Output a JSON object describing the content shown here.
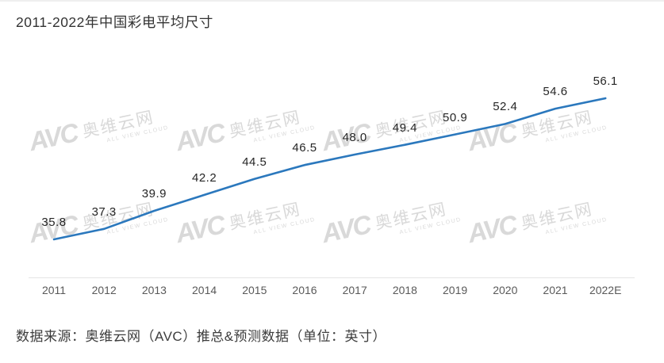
{
  "title": "2011-2022年中国彩电平均尺寸",
  "source_note": "数据来源：奥维云网（AVC）推总&预测数据（单位：英寸）",
  "watermark": {
    "logo": "AVC",
    "brand": "奥维云网",
    "tagline": "ALL VIEW CLOUD"
  },
  "colors": {
    "line": "#2b78bd",
    "point_label": "#262626",
    "axis_label": "#595959",
    "axis_line": "#e4e4e4",
    "watermark": "#d9d9d9",
    "title": "#333333",
    "source": "#3d3d3d",
    "background": "#ffffff"
  },
  "chart_data": {
    "type": "line",
    "title": "2011-2022年中国彩电平均尺寸",
    "categories": [
      "2011",
      "2012",
      "2013",
      "2014",
      "2015",
      "2016",
      "2017",
      "2018",
      "2019",
      "2020",
      "2021",
      "2022E"
    ],
    "values": [
      35.8,
      37.3,
      39.9,
      42.2,
      44.5,
      46.5,
      48.0,
      49.4,
      50.9,
      52.4,
      54.6,
      56.1
    ],
    "labels": [
      "35.8",
      "37.3",
      "39.9",
      "42.2",
      "44.5",
      "46.5",
      "48.0",
      "49.4",
      "50.9",
      "52.4",
      "54.6",
      "56.1"
    ],
    "series_name": "中国彩电平均尺寸",
    "unit": "英寸",
    "xlabel": "",
    "ylabel": "",
    "ylim": [
      35.8,
      56.1
    ],
    "grid": false,
    "legend": false,
    "data_labels_shown": true,
    "y_axis_shown": false
  }
}
